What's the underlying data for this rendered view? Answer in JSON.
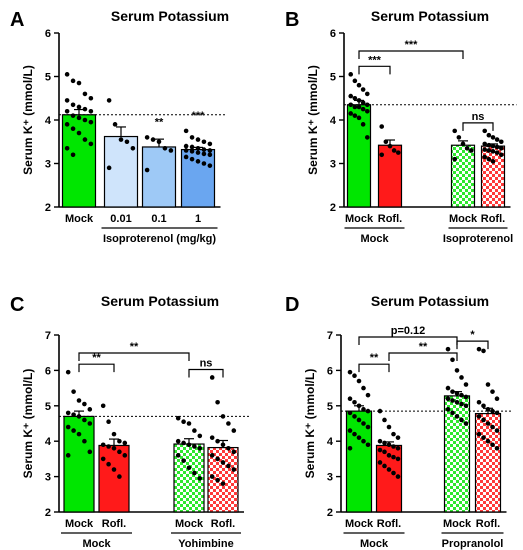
{
  "chart_data": [
    {
      "panel": "A",
      "type": "bar",
      "title": "Serum Potassium",
      "ylabel": "Serum K⁺ (mmol/L)",
      "ylim": [
        2,
        6
      ],
      "yticks": [
        "2",
        "3",
        "4",
        "5",
        "6"
      ],
      "reference_line": 4.12,
      "categories": [
        "Mock",
        "0.01",
        "0.1",
        "1"
      ],
      "group_labels": [
        {
          "text": "Isoproterenol (mg/kg)",
          "from": 1,
          "to": 3
        }
      ],
      "series": [
        {
          "values": [
            4.12,
            3.62,
            3.38,
            3.32
          ],
          "errors": [
            0.12,
            0.22,
            0.18,
            0.05
          ],
          "fill": "#00e600",
          "pattern": "solid",
          "points": [
            [
              5.05,
              4.9,
              4.85,
              4.6,
              4.5,
              4.45,
              4.35,
              4.3,
              4.25,
              4.2,
              4.2,
              4.1,
              4.05,
              4.0,
              3.95,
              3.9,
              3.8,
              3.7,
              3.55,
              3.45,
              3.35,
              3.2
            ],
            [
              4.45,
              3.9,
              3.55,
              3.5,
              3.35,
              2.9
            ],
            [
              3.6,
              3.55,
              3.5,
              3.35,
              3.3,
              2.85
            ],
            [
              3.75,
              3.6,
              3.55,
              3.5,
              3.45,
              3.4,
              3.38,
              3.35,
              3.32,
              3.3,
              3.3,
              3.28,
              3.25,
              3.22,
              3.2,
              3.15,
              3.1,
              3.05,
              3.0,
              2.95
            ]
          ]
        }
      ],
      "bar_fills": [
        "#00e600",
        "#cfe4fb",
        "#9ec9f6",
        "#6aa6f0"
      ],
      "significance": [
        {
          "bar": 2,
          "label": "**"
        },
        {
          "bar": 3,
          "label": "***"
        }
      ]
    },
    {
      "panel": "B",
      "type": "bar",
      "title": "Serum Potassium",
      "ylabel": "Serum K⁺ (mmol/L)",
      "ylim": [
        2,
        6
      ],
      "yticks": [
        "2",
        "3",
        "4",
        "5",
        "6"
      ],
      "reference_line": 4.35,
      "categories": [
        "Mock",
        "Rofl.",
        "Mock",
        "Rofl."
      ],
      "group_labels": [
        {
          "text": "Mock",
          "from": 0,
          "to": 1
        },
        {
          "text": "Isoproterenol",
          "from": 2,
          "to": 3
        }
      ],
      "series": [
        {
          "values": [
            4.35,
            3.42,
            3.42,
            3.4
          ],
          "errors": [
            0.1,
            0.12,
            0.1,
            0.05
          ],
          "points": [
            [
              5.05,
              4.9,
              4.8,
              4.7,
              4.6,
              4.55,
              4.5,
              4.45,
              4.4,
              4.35,
              4.35,
              4.3,
              4.3,
              4.25,
              4.2,
              4.15,
              4.1,
              4.05,
              3.9,
              3.6
            ],
            [
              3.85,
              3.5,
              3.4,
              3.3,
              3.25,
              3.2
            ],
            [
              3.75,
              3.6,
              3.45,
              3.35,
              3.3,
              3.1
            ],
            [
              3.75,
              3.65,
              3.6,
              3.55,
              3.5,
              3.45,
              3.42,
              3.4,
              3.38,
              3.35,
              3.32,
              3.3,
              3.28,
              3.25,
              3.2,
              3.15,
              3.1,
              3.05
            ]
          ]
        }
      ],
      "bar_fills": [
        "#00e600",
        "#ff1a1a",
        "#00e600",
        "#ff1a1a"
      ],
      "bar_patterns": [
        "solid",
        "solid",
        "check",
        "check"
      ],
      "significance": [
        {
          "from": 0,
          "to": 1,
          "label": "***",
          "level": 0
        },
        {
          "from": 0,
          "to": 2,
          "label": "***",
          "level": 1
        },
        {
          "from": 2,
          "to": 3,
          "label": "ns",
          "level": 0
        }
      ]
    },
    {
      "panel": "C",
      "type": "bar",
      "title": "Serum Potassium",
      "ylabel": "Serum K⁺ (mmol/L)",
      "ylim": [
        2,
        7
      ],
      "yticks": [
        "2",
        "3",
        "4",
        "5",
        "6",
        "7"
      ],
      "reference_line": 4.7,
      "categories": [
        "Mock",
        "Rofl.",
        "Mock",
        "Rofl."
      ],
      "group_labels": [
        {
          "text": "Mock",
          "from": 0,
          "to": 1
        },
        {
          "text": "Yohimbine",
          "from": 2,
          "to": 3
        }
      ],
      "series": [
        {
          "values": [
            4.7,
            3.88,
            3.92,
            3.82
          ],
          "errors": [
            0.15,
            0.18,
            0.15,
            0.2
          ],
          "points": [
            [
              5.95,
              5.4,
              5.15,
              5.05,
              4.9,
              4.8,
              4.75,
              4.7,
              4.6,
              4.5,
              4.4,
              4.3,
              4.2,
              4.0,
              3.7,
              3.6
            ],
            [
              5.0,
              4.55,
              4.2,
              4.0,
              3.95,
              3.9,
              3.85,
              3.8,
              3.7,
              3.6,
              3.5,
              3.35,
              3.2,
              3.0
            ],
            [
              4.65,
              4.55,
              4.5,
              4.3,
              4.15,
              4.0,
              3.95,
              3.9,
              3.85,
              3.8,
              3.6,
              3.45,
              3.25,
              3.1,
              2.95
            ],
            [
              5.8,
              5.1,
              4.7,
              4.5,
              4.3,
              4.1,
              4.0,
              3.9,
              3.8,
              3.7,
              3.6,
              3.5,
              3.4,
              3.3,
              3.2,
              3.0,
              2.9,
              2.8
            ]
          ]
        }
      ],
      "bar_fills": [
        "#00e600",
        "#ff1a1a",
        "#00e600",
        "#ff1a1a"
      ],
      "bar_patterns": [
        "solid",
        "solid",
        "check",
        "check"
      ],
      "significance": [
        {
          "from": 0,
          "to": 1,
          "label": "**",
          "level": 0
        },
        {
          "from": 0,
          "to": 2,
          "label": "**",
          "level": 1
        },
        {
          "from": 2,
          "to": 3,
          "label": "ns",
          "level": 0
        }
      ]
    },
    {
      "panel": "D",
      "type": "bar",
      "title": "Serum Potassium",
      "ylabel": "Serum K⁺ (mmol/L)",
      "ylim": [
        2,
        7
      ],
      "yticks": [
        "2",
        "3",
        "4",
        "5",
        "6",
        "7"
      ],
      "reference_line": 4.85,
      "categories": [
        "Mock",
        "Rofl.",
        "Mock",
        "Rofl."
      ],
      "group_labels": [
        {
          "text": "Mock",
          "from": 0,
          "to": 1
        },
        {
          "text": "Propranolol",
          "from": 2,
          "to": 3
        }
      ],
      "series": [
        {
          "values": [
            4.85,
            3.88,
            5.28,
            4.78
          ],
          "errors": [
            0.15,
            0.1,
            0.12,
            0.15
          ],
          "points": [
            [
              5.95,
              5.85,
              5.7,
              5.5,
              5.3,
              5.2,
              5.1,
              5.0,
              4.9,
              4.85,
              4.8,
              4.7,
              4.6,
              4.5,
              4.4,
              4.3,
              4.2,
              4.1,
              4.0,
              3.9,
              3.8
            ],
            [
              4.85,
              4.6,
              4.4,
              4.2,
              4.1,
              4.0,
              3.95,
              3.9,
              3.85,
              3.8,
              3.75,
              3.7,
              3.6,
              3.55,
              3.5,
              3.4,
              3.3,
              3.2,
              3.1,
              3.0
            ],
            [
              6.6,
              6.3,
              6.0,
              5.8,
              5.6,
              5.5,
              5.4,
              5.35,
              5.3,
              5.25,
              5.2,
              5.15,
              5.1,
              5.05,
              5.0,
              4.9,
              4.8,
              4.7,
              4.6,
              4.5
            ],
            [
              6.6,
              6.55,
              5.6,
              5.4,
              5.2,
              5.1,
              5.0,
              4.9,
              4.85,
              4.8,
              4.7,
              4.6,
              4.5,
              4.4,
              4.3,
              4.2,
              4.1,
              4.0,
              3.9,
              3.8
            ]
          ]
        }
      ],
      "bar_fills": [
        "#00e600",
        "#ff1a1a",
        "#00e600",
        "#ff1a1a"
      ],
      "bar_patterns": [
        "solid",
        "solid",
        "check",
        "check"
      ],
      "significance": [
        {
          "from": 0,
          "to": 1,
          "label": "**",
          "level": 0
        },
        {
          "from": 1,
          "to": 2,
          "label": "**",
          "level": 1
        },
        {
          "from": 0,
          "to": 2,
          "label": "p=0.12",
          "level": 2
        },
        {
          "from": 2,
          "to": 3,
          "label": "*",
          "level": 0
        }
      ]
    }
  ]
}
